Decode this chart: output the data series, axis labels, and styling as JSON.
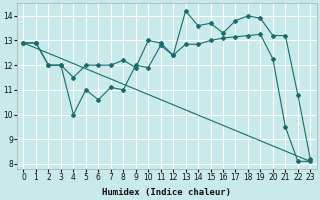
{
  "xlabel": "Humidex (Indice chaleur)",
  "xlim": [
    -0.5,
    23.5
  ],
  "ylim": [
    7.8,
    14.5
  ],
  "yticks": [
    8,
    9,
    10,
    11,
    12,
    13,
    14
  ],
  "xticks": [
    0,
    1,
    2,
    3,
    4,
    5,
    6,
    7,
    8,
    9,
    10,
    11,
    12,
    13,
    14,
    15,
    16,
    17,
    18,
    19,
    20,
    21,
    22,
    23
  ],
  "bg_color": "#c8eaea",
  "grid_color": "#ffffff",
  "line_color": "#1a6b6b",
  "line1_x": [
    0,
    1,
    2,
    3,
    4,
    5,
    6,
    7,
    8,
    9,
    10,
    11,
    12,
    13,
    14,
    15,
    16,
    17,
    18,
    19,
    20,
    21,
    22,
    23
  ],
  "line1_y": [
    12.9,
    12.9,
    12.0,
    12.0,
    11.5,
    12.0,
    12.0,
    12.0,
    12.2,
    11.9,
    13.0,
    12.9,
    12.4,
    14.2,
    13.6,
    13.7,
    13.3,
    13.8,
    14.0,
    13.9,
    13.2,
    13.2,
    10.8,
    8.2
  ],
  "line2_x": [
    0,
    1,
    2,
    3,
    4,
    5,
    6,
    7,
    8,
    9,
    10,
    11,
    12,
    13,
    14,
    15,
    16,
    17,
    18,
    19,
    20,
    21,
    22,
    23
  ],
  "line2_y": [
    12.9,
    12.9,
    12.0,
    12.0,
    10.0,
    11.0,
    10.6,
    11.1,
    11.0,
    12.0,
    11.9,
    12.8,
    12.4,
    12.85,
    12.85,
    13.0,
    13.1,
    13.15,
    13.2,
    13.25,
    12.25,
    9.5,
    8.1,
    8.1
  ],
  "line3_x": [
    0,
    23
  ],
  "line3_y": [
    12.9,
    8.1
  ]
}
